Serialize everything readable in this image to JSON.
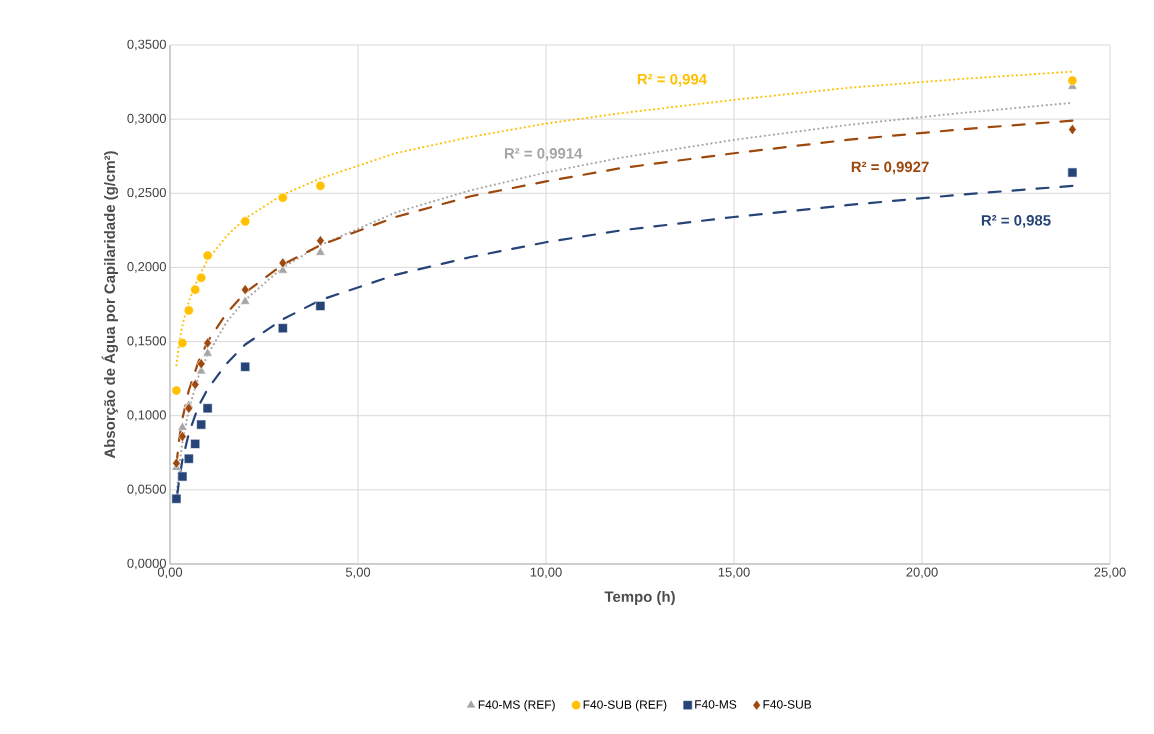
{
  "chart_data": {
    "type": "scatter",
    "xlabel": "Tempo (h)",
    "ylabel": "Absorção de Água por Capilaridade (g/cm²)",
    "xlim": [
      0,
      25
    ],
    "ylim": [
      0,
      0.35
    ],
    "xticks": [
      {
        "value": 0,
        "label": "0,00"
      },
      {
        "value": 5,
        "label": "5,00"
      },
      {
        "value": 10,
        "label": "10,00"
      },
      {
        "value": 15,
        "label": "15,00"
      },
      {
        "value": 20,
        "label": "20,00"
      },
      {
        "value": 25,
        "label": "25,00"
      }
    ],
    "yticks": [
      {
        "value": 0,
        "label": "0,0000"
      },
      {
        "value": 0.05,
        "label": "0,0500"
      },
      {
        "value": 0.1,
        "label": "0,1000"
      },
      {
        "value": 0.15,
        "label": "0,1500"
      },
      {
        "value": 0.2,
        "label": "0,2000"
      },
      {
        "value": 0.25,
        "label": "0,2500"
      },
      {
        "value": 0.3,
        "label": "0,3000"
      },
      {
        "value": 0.35,
        "label": "0,3500"
      }
    ],
    "grid": true,
    "legend": "bottom",
    "series": [
      {
        "name": "F40-MS (REF)",
        "color": "#a5a5a5",
        "marker": "triangle",
        "x": [
          0.17,
          0.33,
          0.5,
          0.67,
          0.83,
          1,
          2,
          3,
          4,
          24
        ],
        "values": [
          0.065,
          0.092,
          0.107,
          null,
          0.13,
          0.142,
          0.177,
          0.198,
          0.21,
          0.322
        ]
      },
      {
        "name": "F40-SUB (REF)",
        "color": "#ffc000",
        "marker": "circle",
        "x": [
          0.17,
          0.33,
          0.5,
          0.67,
          0.83,
          1,
          2,
          3,
          4,
          24
        ],
        "values": [
          0.117,
          0.149,
          0.171,
          0.185,
          0.193,
          0.208,
          0.231,
          0.247,
          0.255,
          0.326
        ]
      },
      {
        "name": "F40-MS",
        "color": "#264478",
        "marker": "square",
        "x": [
          0.17,
          0.33,
          0.5,
          0.67,
          0.83,
          1,
          2,
          3,
          4,
          24
        ],
        "values": [
          0.044,
          0.059,
          0.071,
          0.081,
          0.094,
          0.105,
          0.133,
          0.159,
          0.174,
          0.264
        ]
      },
      {
        "name": "F40-SUB",
        "color": "#9e480e",
        "marker": "diamond",
        "x": [
          0.17,
          0.33,
          0.5,
          0.67,
          0.83,
          1,
          2,
          3,
          4,
          24
        ],
        "values": [
          0.068,
          0.086,
          0.105,
          0.121,
          0.135,
          0.149,
          0.185,
          0.203,
          0.218,
          0.293
        ]
      },
      {
        "type": "line",
        "color": "#a5a5a5",
        "line_style": "dotted",
        "x": [
          0.17,
          0.25,
          0.33,
          0.5,
          0.75,
          1,
          1.5,
          2,
          3,
          4,
          6,
          8,
          10,
          12,
          15,
          18,
          21,
          24
        ],
        "values": [
          0.046,
          0.067,
          0.082,
          0.104,
          0.126,
          0.141,
          0.163,
          0.178,
          0.2,
          0.215,
          0.237,
          0.252,
          0.264,
          0.274,
          0.286,
          0.296,
          0.304,
          0.311
        ]
      },
      {
        "type": "line",
        "color": "#ffc000",
        "line_style": "dotted",
        "x": [
          0.17,
          0.25,
          0.33,
          0.5,
          0.75,
          1,
          1.5,
          2,
          3,
          4,
          6,
          8,
          10,
          12,
          15,
          18,
          21,
          24
        ],
        "values": [
          0.134,
          0.15,
          0.161,
          0.177,
          0.193,
          0.205,
          0.221,
          0.233,
          0.249,
          0.26,
          0.277,
          0.288,
          0.297,
          0.304,
          0.313,
          0.321,
          0.327,
          0.332
        ]
      },
      {
        "type": "line",
        "color": "#264478",
        "line_style": "dashed",
        "x": [
          0.17,
          0.25,
          0.33,
          0.5,
          0.75,
          1,
          1.5,
          2,
          3,
          4,
          6,
          8,
          10,
          12,
          15,
          18,
          21,
          24
        ],
        "values": [
          0.042,
          0.058,
          0.07,
          0.088,
          0.106,
          0.118,
          0.135,
          0.148,
          0.165,
          0.178,
          0.195,
          0.207,
          0.217,
          0.225,
          0.234,
          0.242,
          0.249,
          0.255
        ]
      },
      {
        "type": "line",
        "color": "#9e480e",
        "line_style": "dashed",
        "x": [
          0.17,
          0.25,
          0.33,
          0.5,
          0.75,
          1,
          1.5,
          2,
          3,
          4,
          6,
          8,
          10,
          12,
          15,
          18,
          21,
          24
        ],
        "values": [
          0.067,
          0.085,
          0.098,
          0.117,
          0.136,
          0.15,
          0.169,
          0.183,
          0.202,
          0.215,
          0.234,
          0.248,
          0.258,
          0.267,
          0.277,
          0.286,
          0.293,
          0.299
        ]
      }
    ],
    "annotations": [
      "R² = 0,994",
      "R² = 0,9914",
      "R² = 0,9927",
      "R² = 0,985"
    ]
  }
}
